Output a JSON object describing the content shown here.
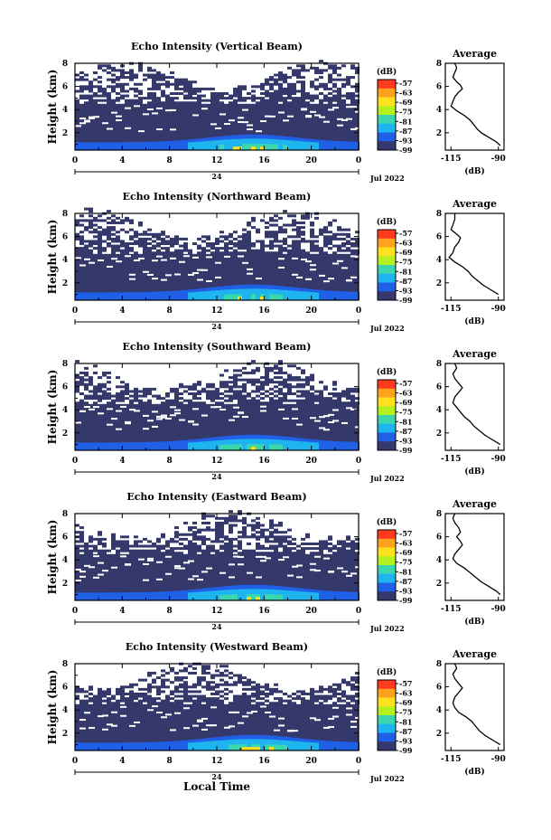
{
  "chart_data": [
    {
      "type": "heatmap",
      "title": "Echo Intensity (Vertical Beam)",
      "ylabel": "Height (km)",
      "xticks": [
        "0",
        "4",
        "8",
        "12",
        "16",
        "20",
        "0"
      ],
      "yticks": [
        "2",
        "4",
        "6",
        "8"
      ],
      "xlim": [
        0,
        24
      ],
      "ylim": [
        0.5,
        8
      ],
      "date_day": "24",
      "date_label": "Jul 2022",
      "colorbar": {
        "unit": "(dB)",
        "labels": [
          "-57",
          "-63",
          "-69",
          "-75",
          "-81",
          "-87",
          "-93",
          "-99"
        ]
      },
      "average": {
        "title": "Average",
        "xlabel": "(dB)",
        "xticks": [
          "-115",
          "-90"
        ],
        "yticks": [
          "2",
          "4",
          "6",
          "8"
        ],
        "profile": [
          [
            -113,
            8
          ],
          [
            -112,
            7.6
          ],
          [
            -113,
            7.2
          ],
          [
            -114,
            6.8
          ],
          [
            -112,
            6.4
          ],
          [
            -110,
            6.1
          ],
          [
            -109,
            5.8
          ],
          [
            -111,
            5.5
          ],
          [
            -113,
            5.1
          ],
          [
            -114,
            4.7
          ],
          [
            -115,
            4.3
          ],
          [
            -112,
            3.9
          ],
          [
            -108,
            3.5
          ],
          [
            -105,
            3.1
          ],
          [
            -103,
            2.7
          ],
          [
            -101,
            2.3
          ],
          [
            -99,
            2.0
          ],
          [
            -95,
            1.6
          ],
          [
            -91,
            1.2
          ],
          [
            -89,
            0.9
          ]
        ]
      }
    },
    {
      "type": "heatmap",
      "title": "Echo Intensity (Northward Beam)",
      "ylabel": "Height (km)",
      "xticks": [
        "0",
        "4",
        "8",
        "12",
        "16",
        "20",
        "0"
      ],
      "yticks": [
        "2",
        "4",
        "6",
        "8"
      ],
      "xlim": [
        0,
        24
      ],
      "ylim": [
        0.5,
        8
      ],
      "date_day": "24",
      "date_label": "Jul 2022",
      "colorbar": {
        "unit": "(dB)",
        "labels": [
          "-57",
          "-63",
          "-69",
          "-75",
          "-81",
          "-87",
          "-93",
          "-99"
        ]
      },
      "average": {
        "title": "Average",
        "xlabel": "(dB)",
        "xticks": [
          "-115",
          "-90"
        ],
        "yticks": [
          "2",
          "4",
          "6",
          "8"
        ],
        "profile": [
          [
            -113,
            8
          ],
          [
            -113,
            7.5
          ],
          [
            -114,
            7.0
          ],
          [
            -115,
            6.6
          ],
          [
            -112,
            6.2
          ],
          [
            -110,
            5.9
          ],
          [
            -111,
            5.5
          ],
          [
            -113,
            5.1
          ],
          [
            -114,
            4.6
          ],
          [
            -116,
            4.2
          ],
          [
            -113,
            3.8
          ],
          [
            -109,
            3.4
          ],
          [
            -106,
            3.0
          ],
          [
            -104,
            2.6
          ],
          [
            -101,
            2.2
          ],
          [
            -98,
            1.8
          ],
          [
            -94,
            1.4
          ],
          [
            -90,
            1.0
          ]
        ]
      }
    },
    {
      "type": "heatmap",
      "title": "Echo Intensity (Southward Beam)",
      "ylabel": "Height (km)",
      "xticks": [
        "0",
        "4",
        "8",
        "12",
        "16",
        "20",
        "0"
      ],
      "yticks": [
        "2",
        "4",
        "6",
        "8"
      ],
      "xlim": [
        0,
        24
      ],
      "ylim": [
        0.5,
        8
      ],
      "date_day": "24",
      "date_label": "Jul 2022",
      "colorbar": {
        "unit": "(dB)",
        "labels": [
          "-57",
          "-63",
          "-69",
          "-75",
          "-81",
          "-87",
          "-93",
          "-99"
        ]
      },
      "average": {
        "title": "Average",
        "xlabel": "(dB)",
        "xticks": [
          "-115",
          "-90"
        ],
        "yticks": [
          "2",
          "4",
          "6",
          "8"
        ],
        "profile": [
          [
            -113,
            8
          ],
          [
            -112,
            7.6
          ],
          [
            -114,
            7.1
          ],
          [
            -113,
            6.7
          ],
          [
            -111,
            6.3
          ],
          [
            -109,
            5.9
          ],
          [
            -111,
            5.5
          ],
          [
            -113,
            5.1
          ],
          [
            -114,
            4.6
          ],
          [
            -112,
            4.2
          ],
          [
            -110,
            3.8
          ],
          [
            -108,
            3.4
          ],
          [
            -105,
            3.0
          ],
          [
            -103,
            2.6
          ],
          [
            -100,
            2.2
          ],
          [
            -97,
            1.8
          ],
          [
            -93,
            1.4
          ],
          [
            -89,
            1.0
          ]
        ]
      }
    },
    {
      "type": "heatmap",
      "title": "Echo Intensity (Eastward Beam)",
      "ylabel": "Height (km)",
      "xticks": [
        "0",
        "4",
        "8",
        "12",
        "16",
        "20",
        "0"
      ],
      "yticks": [
        "2",
        "4",
        "6",
        "8"
      ],
      "xlim": [
        0,
        24
      ],
      "ylim": [
        0.5,
        8
      ],
      "date_day": "24",
      "date_label": "Jul 2022",
      "colorbar": {
        "unit": "(dB)",
        "labels": [
          "-57",
          "-63",
          "-69",
          "-75",
          "-81",
          "-87",
          "-93",
          "-99"
        ]
      },
      "average": {
        "title": "Average",
        "xlabel": "(dB)",
        "xticks": [
          "-115",
          "-90"
        ],
        "yticks": [
          "2",
          "4",
          "6",
          "8"
        ],
        "profile": [
          [
            -113,
            8
          ],
          [
            -114,
            7.6
          ],
          [
            -113,
            7.2
          ],
          [
            -111,
            6.8
          ],
          [
            -110,
            6.4
          ],
          [
            -112,
            6.0
          ],
          [
            -110,
            5.6
          ],
          [
            -109,
            5.3
          ],
          [
            -111,
            4.9
          ],
          [
            -113,
            4.5
          ],
          [
            -114,
            4.1
          ],
          [
            -112,
            3.7
          ],
          [
            -108,
            3.3
          ],
          [
            -105,
            2.9
          ],
          [
            -102,
            2.5
          ],
          [
            -99,
            2.1
          ],
          [
            -95,
            1.7
          ],
          [
            -91,
            1.3
          ],
          [
            -89,
            1.0
          ]
        ]
      }
    },
    {
      "type": "heatmap",
      "title": "Echo Intensity (Westward Beam)",
      "ylabel": "Height (km)",
      "xlabel": "Local Time",
      "xticks": [
        "0",
        "4",
        "8",
        "12",
        "16",
        "20",
        "0"
      ],
      "yticks": [
        "2",
        "4",
        "6",
        "8"
      ],
      "xlim": [
        0,
        24
      ],
      "ylim": [
        0.5,
        8
      ],
      "date_day": "24",
      "date_label": "Jul 2022",
      "colorbar": {
        "unit": "(dB)",
        "labels": [
          "-57",
          "-63",
          "-69",
          "-75",
          "-81",
          "-87",
          "-93",
          "-99"
        ]
      },
      "average": {
        "title": "Average",
        "xlabel": "(dB)",
        "xticks": [
          "-115",
          "-90"
        ],
        "yticks": [
          "2",
          "4",
          "6",
          "8"
        ],
        "profile": [
          [
            -113,
            8
          ],
          [
            -112,
            7.6
          ],
          [
            -114,
            7.1
          ],
          [
            -113,
            6.7
          ],
          [
            -111,
            6.3
          ],
          [
            -109,
            5.9
          ],
          [
            -111,
            5.5
          ],
          [
            -113,
            5.1
          ],
          [
            -114,
            4.6
          ],
          [
            -113,
            4.2
          ],
          [
            -111,
            3.8
          ],
          [
            -107,
            3.4
          ],
          [
            -104,
            3.0
          ],
          [
            -102,
            2.6
          ],
          [
            -100,
            2.2
          ],
          [
            -97,
            1.8
          ],
          [
            -93,
            1.4
          ],
          [
            -89,
            1.0
          ]
        ]
      }
    }
  ],
  "colors": {
    "background_echo": "#34386a",
    "scale": [
      "#ff3a1e",
      "#ffa21e",
      "#ffe11e",
      "#b6f01e",
      "#3ad7ae",
      "#1eb4f0",
      "#2060e6",
      "#34386a"
    ]
  }
}
